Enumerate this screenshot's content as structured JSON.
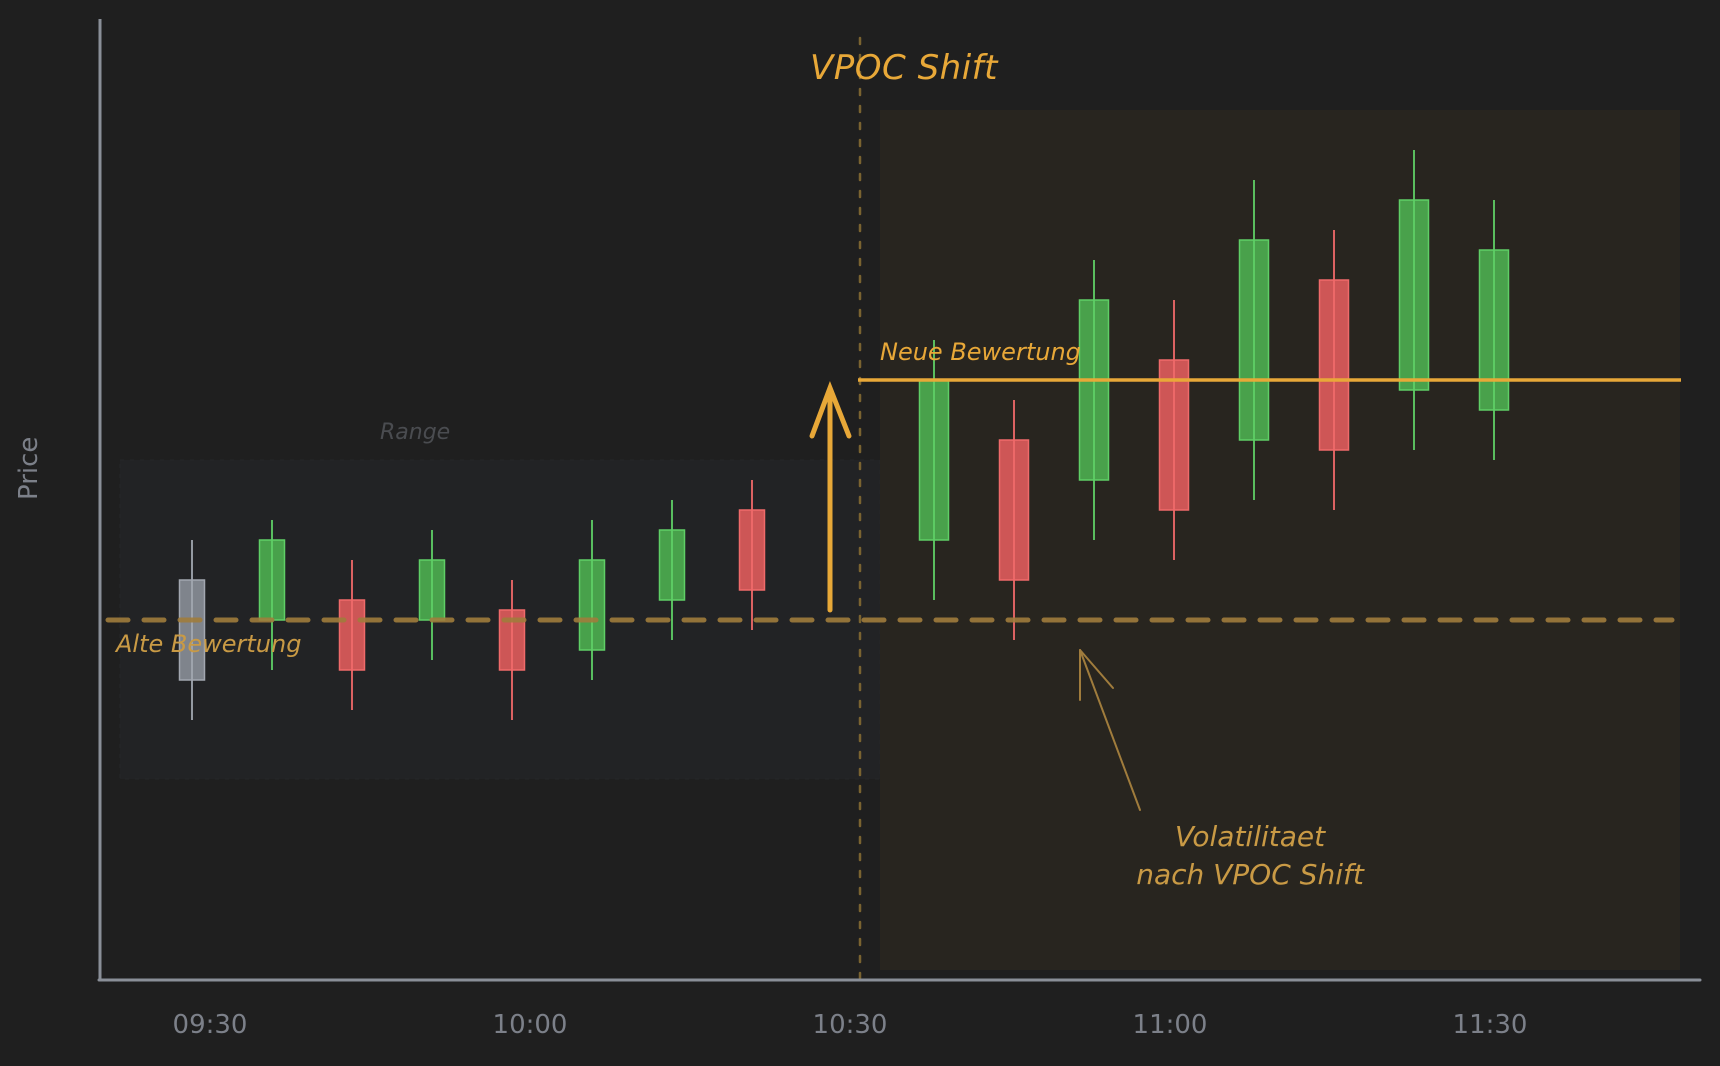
{
  "chart_data": {
    "type": "candlestick",
    "title": "VPOC Shift",
    "xlabel": "",
    "ylabel": "Price",
    "x_ticks": [
      "09:30",
      "10:00",
      "10:30",
      "11:00",
      "11:30"
    ],
    "grid": false,
    "candles": [
      {
        "open": 102.0,
        "close": 97.0,
        "high": 104.0,
        "low": 95.0,
        "color": "neutral"
      },
      {
        "open": 100.0,
        "close": 104.0,
        "high": 105.0,
        "low": 97.5,
        "color": "up"
      },
      {
        "open": 101.0,
        "close": 97.5,
        "high": 103.0,
        "low": 95.5,
        "color": "down"
      },
      {
        "open": 100.0,
        "close": 103.0,
        "high": 104.5,
        "low": 98.0,
        "color": "up"
      },
      {
        "open": 100.5,
        "close": 97.5,
        "high": 102.0,
        "low": 95.0,
        "color": "down"
      },
      {
        "open": 98.5,
        "close": 103.0,
        "high": 105.0,
        "low": 97.0,
        "color": "up"
      },
      {
        "open": 101.0,
        "close": 104.5,
        "high": 106.0,
        "low": 99.0,
        "color": "up"
      },
      {
        "open": 105.5,
        "close": 101.5,
        "high": 107.0,
        "low": 99.5,
        "color": "down"
      },
      {
        "open": 104.0,
        "close": 112.0,
        "high": 114.0,
        "low": 101.0,
        "color": "up"
      },
      {
        "open": 109.0,
        "close": 102.0,
        "high": 111.0,
        "low": 99.0,
        "color": "down"
      },
      {
        "open": 107.0,
        "close": 116.0,
        "high": 118.0,
        "low": 104.0,
        "color": "up"
      },
      {
        "open": 113.0,
        "close": 105.5,
        "high": 116.0,
        "low": 103.0,
        "color": "down"
      },
      {
        "open": 109.0,
        "close": 119.0,
        "high": 122.0,
        "low": 106.0,
        "color": "up"
      },
      {
        "open": 117.0,
        "close": 108.5,
        "high": 119.5,
        "low": 105.5,
        "color": "down"
      },
      {
        "open": 111.5,
        "close": 121.0,
        "high": 123.5,
        "low": 108.5,
        "color": "up"
      },
      {
        "open": 110.5,
        "close": 118.5,
        "high": 121.0,
        "low": 108.0,
        "color": "up"
      }
    ],
    "reference_lines": [
      {
        "label": "Alte Bewertung",
        "price": 100.0,
        "style": "dashed"
      },
      {
        "label": "Neue Bewertung",
        "price": 112.0,
        "style": "solid"
      }
    ],
    "regions": [
      {
        "label": "Range",
        "from_candle": 0,
        "to_candle": 7,
        "price_low": 92.05,
        "price_high": 108.0
      },
      {
        "label": "post-shift highlight",
        "from_candle": 8,
        "to_candle": 15
      }
    ],
    "vertical_marker": {
      "label": "VPOC Shift",
      "between_candles": [
        7,
        8
      ]
    },
    "annotations": [
      {
        "text": "Volatilitaet nach VPOC Shift",
        "points_to_price": 98.5
      },
      {
        "text": "shift arrow",
        "from_price": 100.4,
        "to_price": 111.6
      }
    ],
    "legend": null
  },
  "colors": {
    "background": "#1f1f1f",
    "axis": "#8a8f98",
    "up": "#4caf50",
    "up_edge": "#5fcf66",
    "down": "#e05c5c",
    "down_edge": "#f06a6a",
    "neutral": "#8a8f98",
    "accent": "#e8a838",
    "accent_muted": "#a07c3c",
    "range_fill": "#222325",
    "highlight_fill": "#28251f",
    "muted_text": "#7c8089"
  },
  "labels": {
    "title": "VPOC Shift",
    "ylabel": "Price",
    "range": "Range",
    "alte": "Alte Bewertung",
    "neue": "Neue Bewertung",
    "vol_line1": "Volatilitaet",
    "vol_line2": "nach VPOC Shift",
    "x_ticks": [
      "09:30",
      "10:00",
      "10:30",
      "11:00",
      "11:30"
    ]
  }
}
